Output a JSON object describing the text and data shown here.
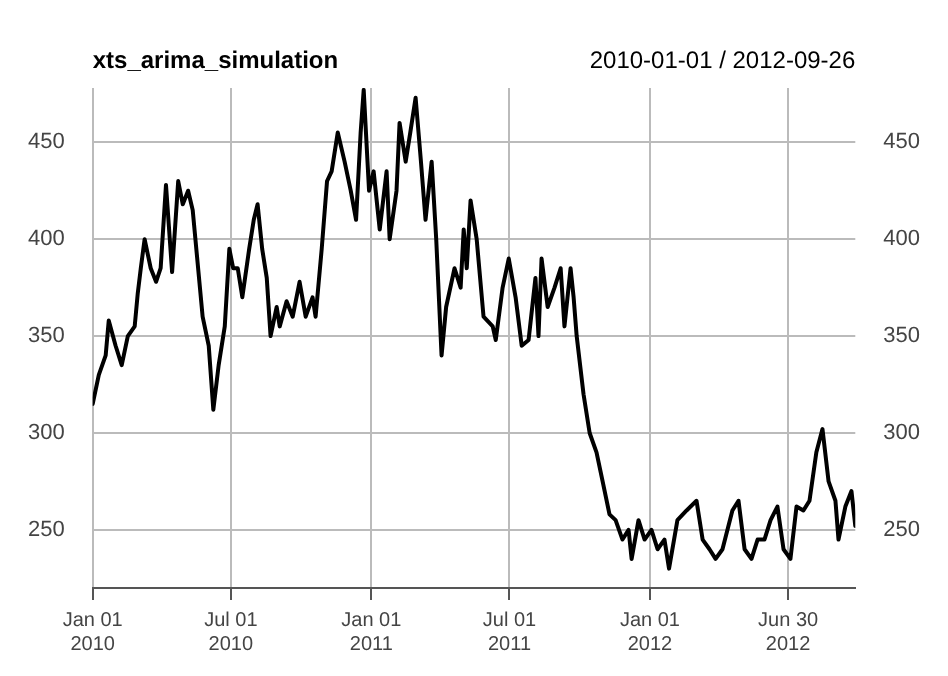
{
  "chart_data": {
    "type": "line",
    "title": "xts_arima_simulation",
    "subtitle": "2010-01-01 / 2012-09-26",
    "x": [
      "2010-01-01",
      "2010-01-09",
      "2010-01-18",
      "2010-01-22",
      "2010-01-31",
      "2010-02-08",
      "2010-02-16",
      "2010-02-25",
      "2010-03-01",
      "2010-03-05",
      "2010-03-10",
      "2010-03-18",
      "2010-03-25",
      "2010-03-31",
      "2010-04-07",
      "2010-04-15",
      "2010-04-23",
      "2010-04-29",
      "2010-05-06",
      "2010-05-12",
      "2010-05-25",
      "2010-06-02",
      "2010-06-08",
      "2010-06-15",
      "2010-06-23",
      "2010-06-29",
      "2010-07-04",
      "2010-07-10",
      "2010-07-16",
      "2010-07-25",
      "2010-07-31",
      "2010-08-05",
      "2010-08-11",
      "2010-08-17",
      "2010-08-22",
      "2010-08-30",
      "2010-09-03",
      "2010-09-12",
      "2010-09-20",
      "2010-09-29",
      "2010-10-07",
      "2010-10-16",
      "2010-10-20",
      "2010-10-28",
      "2010-11-04",
      "2010-11-10",
      "2010-11-18",
      "2010-11-27",
      "2010-12-05",
      "2010-12-12",
      "2010-12-18",
      "2010-12-22",
      "2010-12-29",
      "2011-01-04",
      "2011-01-12",
      "2011-01-21",
      "2011-01-25",
      "2011-02-03",
      "2011-02-07",
      "2011-02-15",
      "2011-02-21",
      "2011-02-28",
      "2011-03-07",
      "2011-03-13",
      "2011-03-21",
      "2011-03-27",
      "2011-04-03",
      "2011-04-09",
      "2011-04-20",
      "2011-04-28",
      "2011-05-02",
      "2011-05-06",
      "2011-05-11",
      "2011-05-19",
      "2011-05-28",
      "2011-06-09",
      "2011-06-13",
      "2011-06-22",
      "2011-06-30",
      "2011-07-09",
      "2011-07-17",
      "2011-07-26",
      "2011-08-04",
      "2011-08-08",
      "2011-08-12",
      "2011-08-20",
      "2011-08-29",
      "2011-09-06",
      "2011-09-11",
      "2011-09-19",
      "2011-09-23",
      "2011-09-27",
      "2011-10-06",
      "2011-10-14",
      "2011-10-23",
      "2011-10-31",
      "2011-11-09",
      "2011-11-17",
      "2011-11-26",
      "2011-12-04",
      "2011-12-08",
      "2011-12-17",
      "2011-12-25",
      "2012-01-03",
      "2012-01-11",
      "2012-01-20",
      "2012-01-26",
      "2012-02-06",
      "2012-02-18",
      "2012-03-02",
      "2012-03-10",
      "2012-03-19",
      "2012-03-27",
      "2012-04-05",
      "2012-04-18",
      "2012-04-26",
      "2012-05-04",
      "2012-05-13",
      "2012-05-21",
      "2012-05-30",
      "2012-06-07",
      "2012-06-16",
      "2012-06-24",
      "2012-07-03",
      "2012-07-11",
      "2012-07-20",
      "2012-07-28",
      "2012-08-06",
      "2012-08-14",
      "2012-08-22",
      "2012-08-31",
      "2012-09-04",
      "2012-09-13",
      "2012-09-21",
      "2012-09-26"
    ],
    "series": [
      {
        "color": "#000000",
        "values": [
          315,
          330,
          340,
          358,
          345,
          335,
          350,
          355,
          372,
          385,
          400,
          385,
          378,
          385,
          428,
          383,
          430,
          418,
          425,
          415,
          360,
          345,
          312,
          335,
          355,
          395,
          385,
          385,
          370,
          395,
          410,
          418,
          395,
          380,
          350,
          365,
          355,
          368,
          360,
          378,
          360,
          370,
          360,
          395,
          430,
          435,
          455,
          440,
          425,
          410,
          455,
          477,
          425,
          435,
          405,
          435,
          400,
          425,
          460,
          440,
          455,
          473,
          440,
          410,
          440,
          400,
          340,
          365,
          385,
          375,
          405,
          385,
          420,
          400,
          360,
          355,
          348,
          375,
          390,
          370,
          345,
          348,
          380,
          350,
          390,
          365,
          375,
          385,
          355,
          385,
          370,
          350,
          320,
          300,
          290,
          275,
          258,
          255,
          245,
          250,
          235,
          255,
          245,
          250,
          240,
          245,
          230,
          255,
          260,
          265,
          245,
          240,
          235,
          240,
          260,
          265,
          240,
          235,
          245,
          245,
          255,
          262,
          240,
          235,
          262,
          260,
          265,
          290,
          302,
          275,
          265,
          245,
          262,
          270,
          252
        ]
      }
    ],
    "xlim": [
      "2010-01-01",
      "2012-09-26"
    ],
    "xticks": [
      {
        "value": "2010-01-01",
        "label": "Jan 01\n2010"
      },
      {
        "value": "2010-07-01",
        "label": "Jul 01\n2010"
      },
      {
        "value": "2011-01-01",
        "label": "Jan 01\n2011"
      },
      {
        "value": "2011-07-01",
        "label": "Jul 01\n2011"
      },
      {
        "value": "2012-01-01",
        "label": "Jan 01\n2012"
      },
      {
        "value": "2012-06-30",
        "label": "Jun 30\n2012"
      }
    ],
    "ylim": [
      220,
      478
    ],
    "yticks": [
      250,
      300,
      350,
      400,
      450
    ],
    "y2lim": [
      220,
      478
    ],
    "y2ticks": [
      250,
      300,
      350,
      400,
      450
    ],
    "grid": true,
    "legend": false,
    "marker": "none",
    "line_style": "solid"
  }
}
